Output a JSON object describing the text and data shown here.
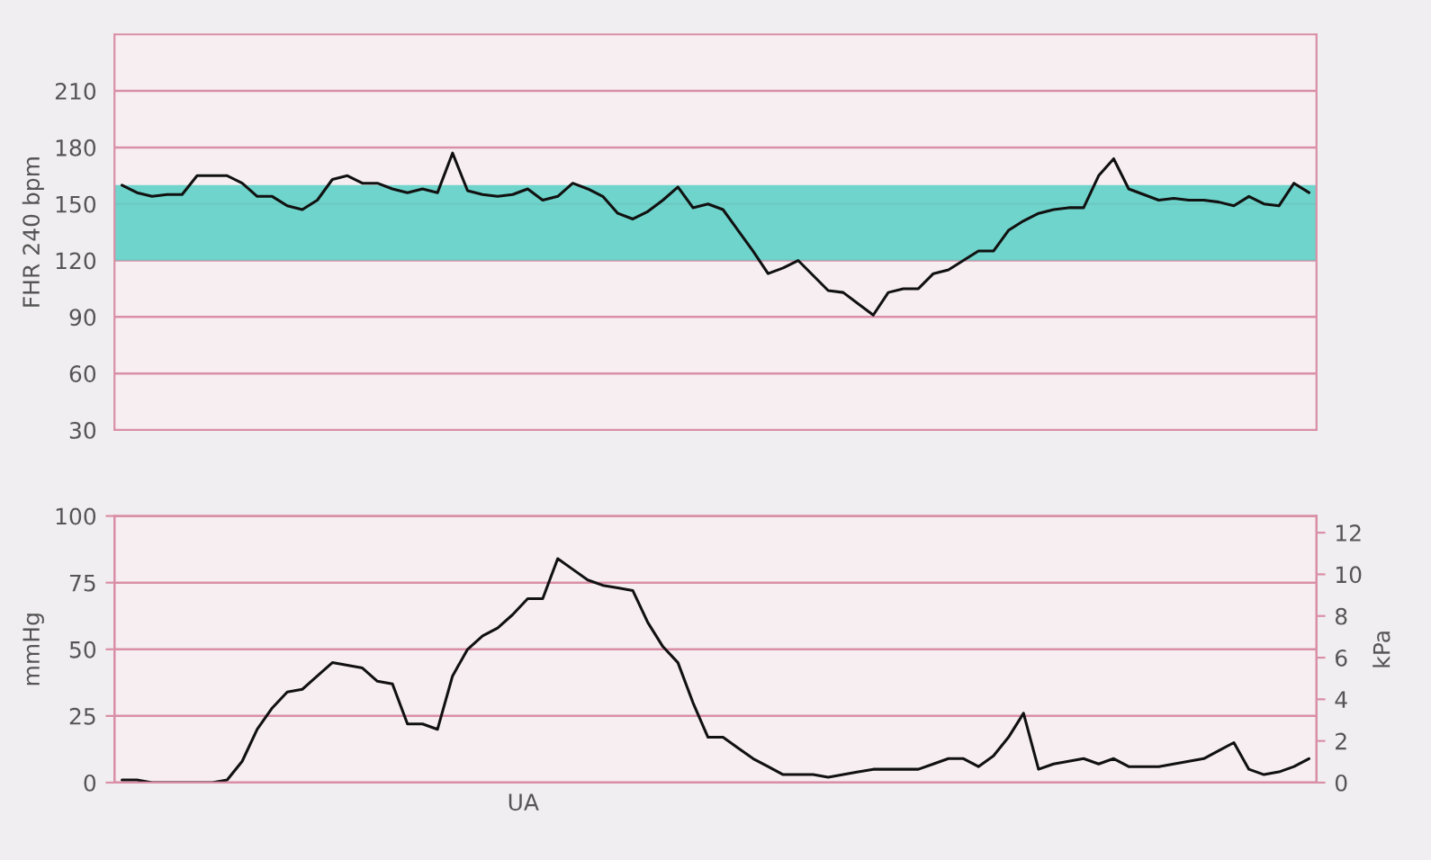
{
  "chart_data": [
    {
      "type": "line",
      "ylabel": "FHR 240 bpm",
      "ylim": [
        30,
        240
      ],
      "yticks": [
        30,
        60,
        90,
        120,
        150,
        180,
        210
      ],
      "categories": [
        null,
        null,
        null,
        null,
        null,
        null,
        null,
        null,
        null,
        null,
        null,
        null,
        null,
        null,
        null,
        null,
        null,
        null,
        null,
        null,
        null,
        null,
        null,
        null,
        null,
        null,
        null,
        null,
        null,
        null,
        null,
        null,
        null,
        null,
        null,
        null,
        null,
        null,
        null,
        null,
        null,
        null,
        null,
        null,
        null,
        null,
        null,
        null,
        null,
        null,
        null,
        null,
        null,
        null,
        null,
        null,
        null,
        null,
        null,
        null,
        null,
        null,
        null,
        null,
        null,
        null,
        null,
        null,
        null,
        null,
        null,
        null,
        null,
        null,
        null,
        null,
        null,
        null,
        null,
        null
      ],
      "grid": "y",
      "marker": "none",
      "line_style": "solid",
      "bands": [
        {
          "axis": "y",
          "from": 120,
          "to": 160,
          "color": "#5fd0c6"
        }
      ],
      "series": [
        {
          "color": "#111111",
          "values": [
            160,
            156,
            154,
            155,
            155,
            165,
            165,
            165,
            161,
            154,
            154,
            149,
            147,
            152,
            163,
            165,
            161,
            161,
            158,
            156,
            158,
            156,
            177,
            157,
            155,
            154,
            155,
            158,
            152,
            154,
            161,
            158,
            154,
            145,
            142,
            146,
            152,
            159,
            148,
            150,
            147,
            136,
            125,
            113,
            116,
            120,
            112,
            104,
            103,
            97,
            91,
            103,
            105,
            105,
            113,
            115,
            120,
            125,
            125,
            136,
            141,
            145,
            147,
            148,
            148,
            165,
            174,
            158,
            155,
            152,
            153,
            152,
            152,
            151,
            149,
            154,
            150,
            149,
            161,
            156
          ]
        }
      ]
    },
    {
      "type": "line",
      "ylabel": "mmHg",
      "y2label": "kPa",
      "annotations": [
        "UA"
      ],
      "ylim": [
        0,
        100
      ],
      "yticks": [
        0,
        25,
        50,
        75,
        100
      ],
      "y2lim": [
        0,
        12.8
      ],
      "y2ticks": [
        0,
        2,
        4,
        6,
        8,
        10,
        12
      ],
      "categories": [
        null,
        null,
        null,
        null,
        null,
        null,
        null,
        null,
        null,
        null,
        null,
        null,
        null,
        null,
        null,
        null,
        null,
        null,
        null,
        null,
        null,
        null,
        null,
        null,
        null,
        null,
        null,
        null,
        null,
        null,
        null,
        null,
        null,
        null,
        null,
        null,
        null,
        null,
        null,
        null,
        null,
        null,
        null,
        null,
        null,
        null,
        null,
        null,
        null,
        null,
        null,
        null,
        null,
        null,
        null,
        null,
        null,
        null,
        null,
        null,
        null,
        null,
        null,
        null,
        null,
        null,
        null,
        null,
        null,
        null,
        null,
        null,
        null,
        null,
        null,
        null,
        null,
        null,
        null,
        null
      ],
      "grid": "y",
      "marker": "none",
      "line_style": "solid",
      "series": [
        {
          "color": "#111111",
          "values": [
            1,
            1,
            0,
            0,
            0,
            0,
            0,
            1,
            8,
            20,
            28,
            34,
            35,
            40,
            45,
            44,
            43,
            38,
            37,
            22,
            22,
            20,
            40,
            50,
            55,
            58,
            63,
            69,
            69,
            84,
            80,
            76,
            74,
            73,
            72,
            60,
            51,
            45,
            30,
            17,
            17,
            13,
            9,
            6,
            3,
            3,
            3,
            2,
            3,
            4,
            5,
            5,
            5,
            5,
            7,
            9,
            9,
            6,
            10,
            17,
            26,
            5,
            7,
            8,
            9,
            7,
            9,
            6,
            6,
            6,
            7,
            8,
            9,
            12,
            15,
            5,
            3,
            4,
            6,
            9
          ]
        }
      ]
    }
  ]
}
